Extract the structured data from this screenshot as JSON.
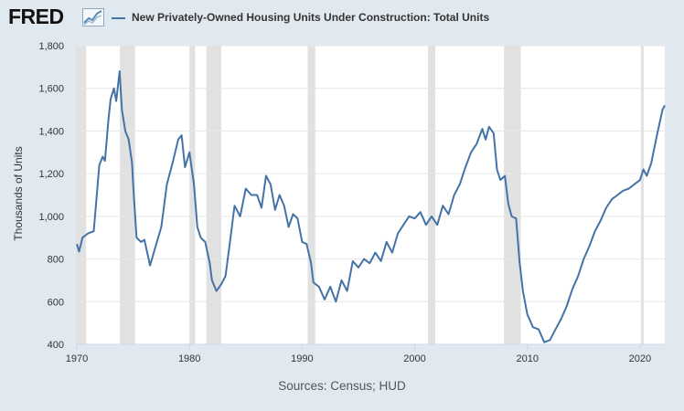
{
  "brand": {
    "logo_text": "FRED"
  },
  "footer": {
    "source": "Sources: Census; HUD"
  },
  "colors": {
    "background": "#e1e9f0",
    "plot_background": "#ffffff",
    "series": "#4572a7",
    "recession": "#e1e1e1",
    "grid": "#e6e6e6"
  },
  "chart_data": {
    "type": "line",
    "title": "New Privately-Owned Housing Units Under Construction: Total Units",
    "ylabel": "Thousands of Units",
    "xlabel": "",
    "xlim": [
      1970.0,
      2022.2
    ],
    "ylim": [
      400,
      1800
    ],
    "grid": "horizontal",
    "legend_position": "top",
    "x_ticks": [
      1970,
      1980,
      1990,
      2000,
      2010,
      2020
    ],
    "y_ticks": [
      400,
      600,
      800,
      1000,
      1200,
      1400,
      1600,
      1800
    ],
    "y_tick_labels": [
      "400",
      "600",
      "800",
      "1,000",
      "1,200",
      "1,400",
      "1,600",
      "1,800"
    ],
    "recessions": [
      [
        1969.92,
        1970.83
      ],
      [
        1973.83,
        1975.17
      ],
      [
        1980.0,
        1980.5
      ],
      [
        1981.5,
        1982.83
      ],
      [
        1990.5,
        1991.17
      ],
      [
        2001.17,
        2001.83
      ],
      [
        2007.92,
        2009.42
      ],
      [
        2020.08,
        2020.33
      ]
    ],
    "series": [
      {
        "name": "New Privately-Owned Housing Units Under Construction: Total Units",
        "x": [
          1970.0,
          1970.2,
          1970.5,
          1971.0,
          1971.5,
          1972.0,
          1972.3,
          1972.5,
          1972.8,
          1973.0,
          1973.3,
          1973.5,
          1973.8,
          1974.0,
          1974.3,
          1974.6,
          1974.9,
          1975.0,
          1975.3,
          1975.7,
          1976.0,
          1976.5,
          1977.0,
          1977.5,
          1978.0,
          1978.5,
          1979.0,
          1979.3,
          1979.6,
          1980.0,
          1980.4,
          1980.7,
          1981.0,
          1981.4,
          1981.8,
          1982.0,
          1982.4,
          1982.8,
          1983.2,
          1983.6,
          1984.0,
          1984.5,
          1985.0,
          1985.5,
          1986.0,
          1986.4,
          1986.8,
          1987.2,
          1987.6,
          1988.0,
          1988.4,
          1988.8,
          1989.2,
          1989.6,
          1990.0,
          1990.4,
          1990.8,
          1991.0,
          1991.5,
          1992.0,
          1992.5,
          1993.0,
          1993.5,
          1994.0,
          1994.5,
          1995.0,
          1995.5,
          1996.0,
          1996.5,
          1997.0,
          1997.5,
          1998.0,
          1998.5,
          1999.0,
          1999.5,
          2000.0,
          2000.5,
          2001.0,
          2001.5,
          2002.0,
          2002.5,
          2003.0,
          2003.5,
          2004.0,
          2004.5,
          2005.0,
          2005.5,
          2006.0,
          2006.3,
          2006.6,
          2007.0,
          2007.3,
          2007.6,
          2008.0,
          2008.3,
          2008.6,
          2009.0,
          2009.3,
          2009.6,
          2010.0,
          2010.5,
          2011.0,
          2011.5,
          2012.0,
          2012.5,
          2013.0,
          2013.5,
          2014.0,
          2014.5,
          2015.0,
          2015.5,
          2016.0,
          2016.5,
          2017.0,
          2017.5,
          2018.0,
          2018.5,
          2019.0,
          2019.5,
          2020.0,
          2020.3,
          2020.6,
          2021.0,
          2021.5,
          2022.0,
          2022.2
        ],
        "y": [
          870,
          835,
          900,
          920,
          930,
          1240,
          1280,
          1260,
          1450,
          1550,
          1600,
          1540,
          1680,
          1500,
          1400,
          1360,
          1250,
          1150,
          900,
          880,
          890,
          770,
          860,
          950,
          1150,
          1250,
          1360,
          1380,
          1230,
          1300,
          1150,
          950,
          900,
          880,
          780,
          700,
          650,
          680,
          720,
          880,
          1050,
          1000,
          1130,
          1100,
          1100,
          1040,
          1190,
          1150,
          1030,
          1100,
          1050,
          950,
          1010,
          990,
          880,
          870,
          780,
          690,
          670,
          610,
          670,
          600,
          700,
          650,
          790,
          760,
          800,
          780,
          830,
          790,
          880,
          830,
          920,
          960,
          1000,
          990,
          1020,
          960,
          1000,
          960,
          1050,
          1010,
          1100,
          1150,
          1230,
          1300,
          1340,
          1410,
          1360,
          1420,
          1390,
          1220,
          1170,
          1190,
          1060,
          1000,
          990,
          790,
          650,
          540,
          480,
          470,
          410,
          420,
          470,
          520,
          580,
          660,
          720,
          800,
          860,
          930,
          980,
          1040,
          1080,
          1100,
          1120,
          1130,
          1150,
          1170,
          1220,
          1190,
          1250,
          1380,
          1500,
          1520
        ]
      }
    ]
  }
}
